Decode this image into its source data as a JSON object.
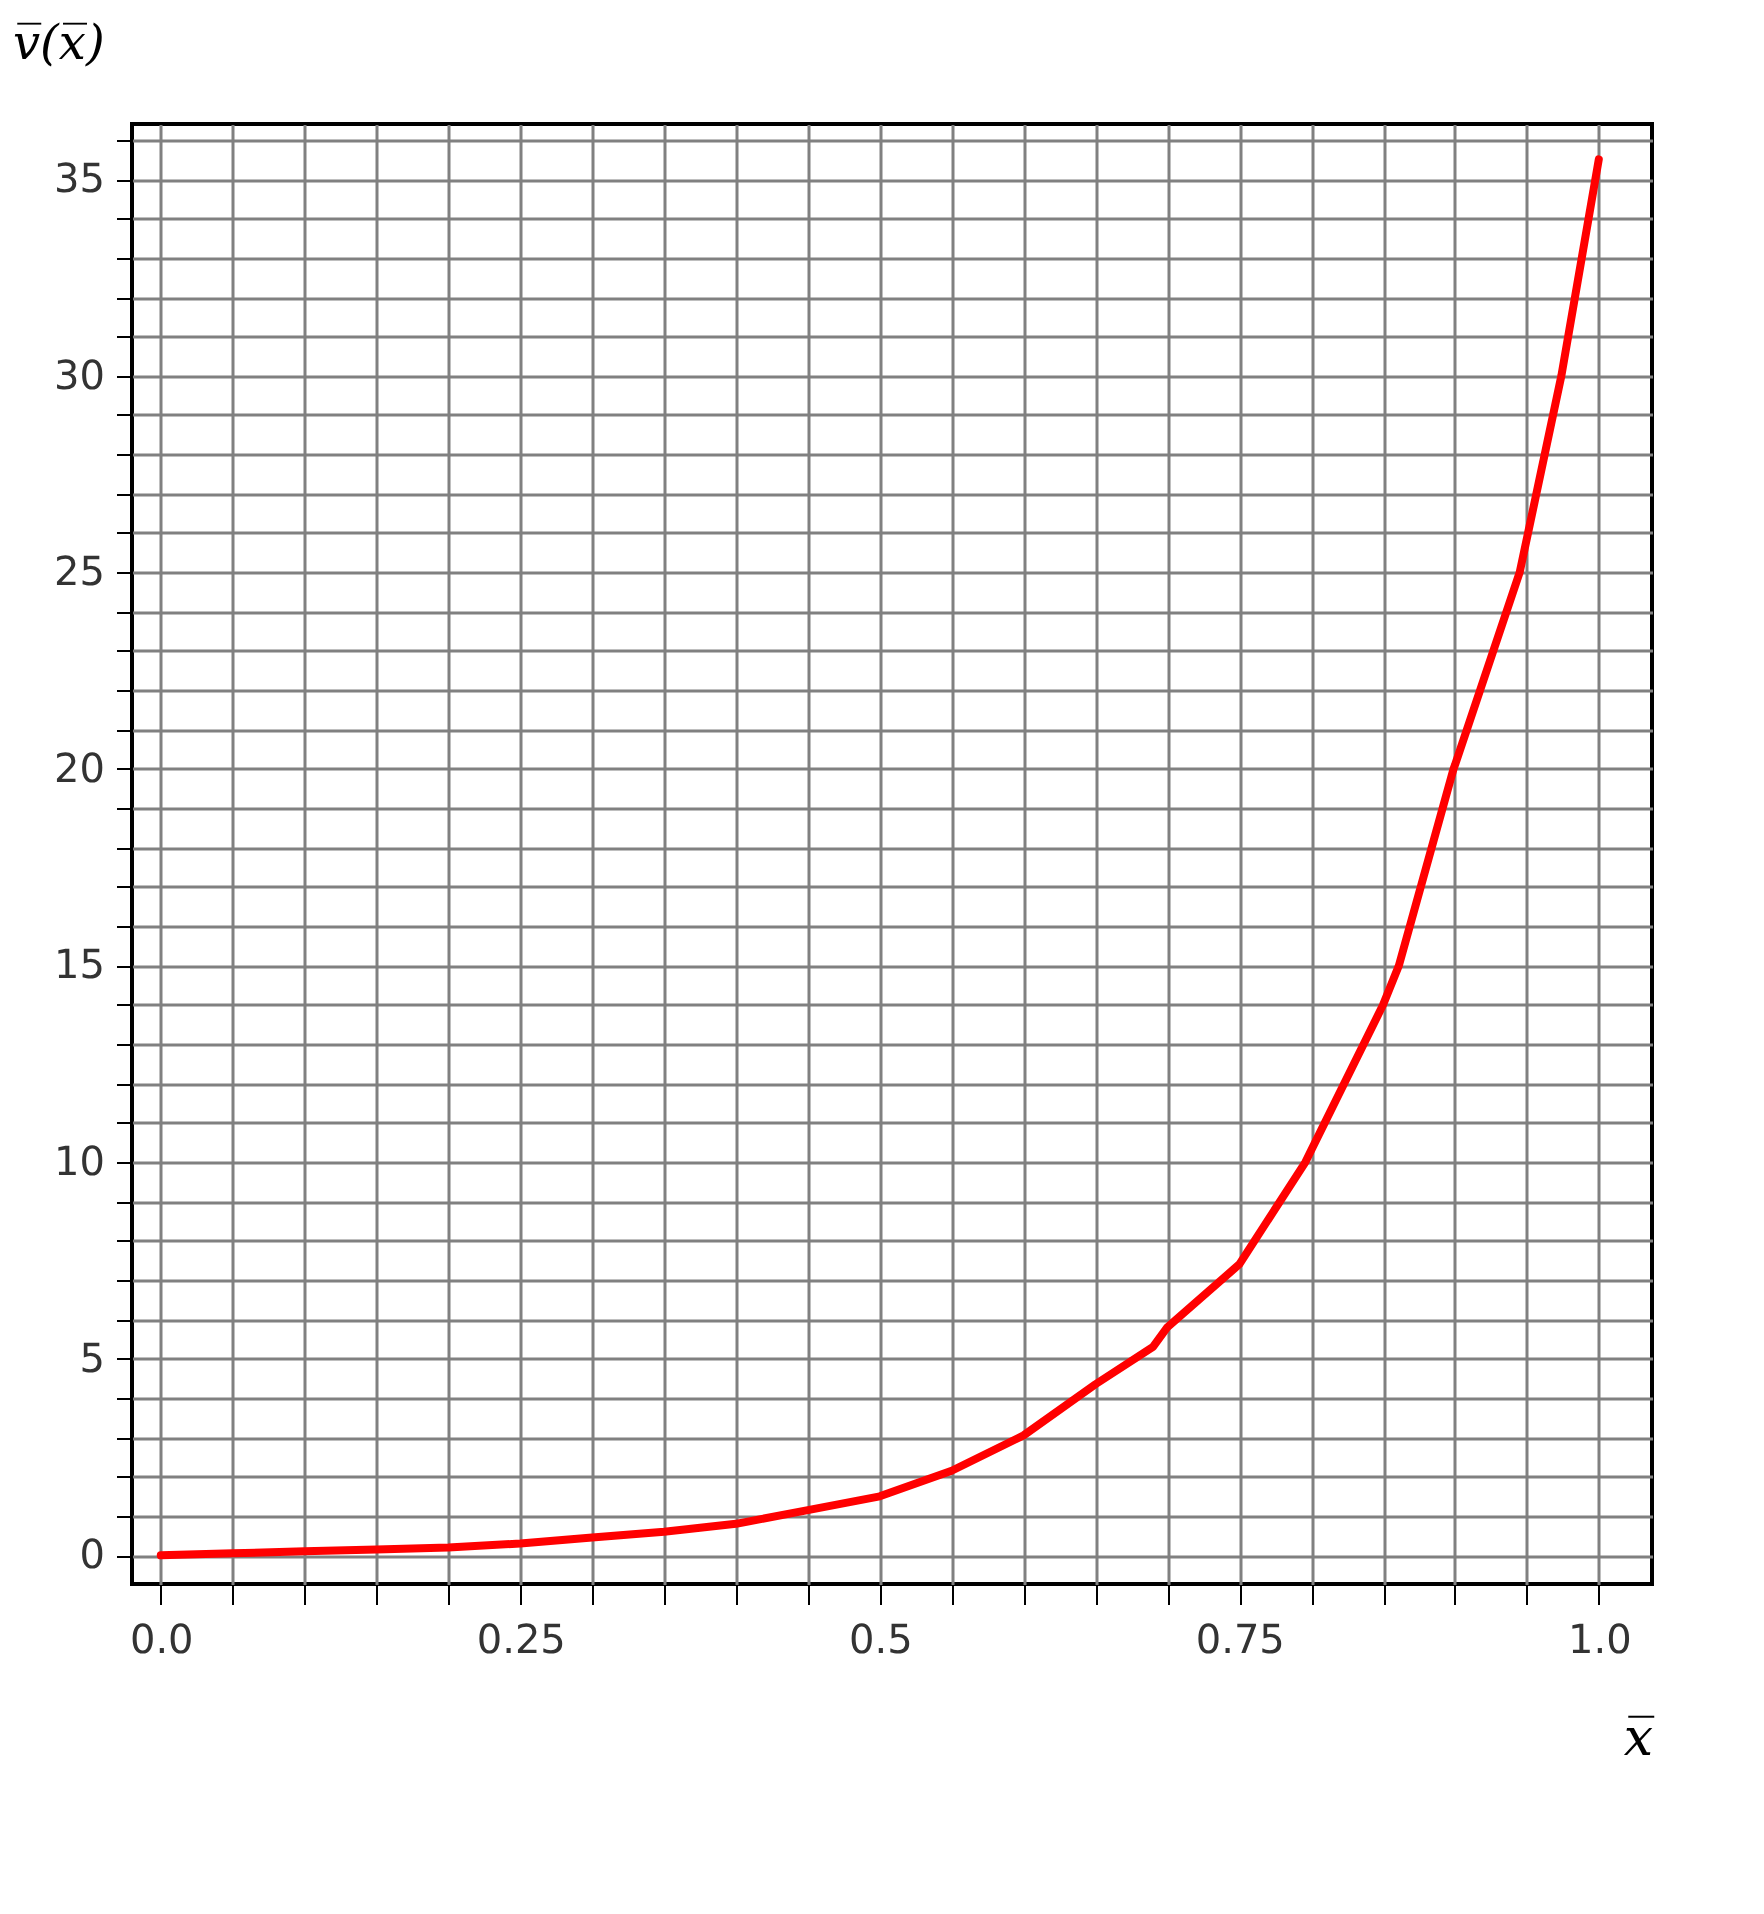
{
  "chart_data": {
    "type": "line",
    "xlabel": "x̅",
    "ylabel": "v̅(x̅)",
    "x": [
      0,
      0.05,
      0.1,
      0.15,
      0.2,
      0.25,
      0.3,
      0.35,
      0.4,
      0.45,
      0.5,
      0.55,
      0.6,
      0.65,
      0.69,
      0.7,
      0.75,
      0.796,
      0.8,
      0.85,
      0.861,
      0.899,
      0.9,
      0.945,
      0.974,
      1.0
    ],
    "series": [
      {
        "color": "#ff0000",
        "values": [
          0,
          0.05,
          0.1,
          0.15,
          0.2,
          0.3,
          0.45,
          0.6,
          0.8,
          1.15,
          1.5,
          2.15,
          3.05,
          4.35,
          5.3,
          5.8,
          7.4,
          10,
          10.3,
          14,
          15,
          20,
          20.1,
          25,
          30,
          35.5
        ]
      }
    ],
    "xlim": [
      -0.02,
      1.037
    ],
    "ylim": [
      -0.73,
      36.4
    ],
    "xticks": [
      {
        "value": 0,
        "label": "0.0"
      },
      {
        "value": 0.05,
        "label": null
      },
      {
        "value": 0.1,
        "label": null
      },
      {
        "value": 0.15,
        "label": null
      },
      {
        "value": 0.2,
        "label": null
      },
      0.25,
      {
        "value": 0.3,
        "label": null
      },
      {
        "value": 0.35,
        "label": null
      },
      {
        "value": 0.4,
        "label": null
      },
      {
        "value": 0.45,
        "label": null
      },
      0.5,
      {
        "value": 0.55,
        "label": null
      },
      {
        "value": 0.6,
        "label": null
      },
      {
        "value": 0.65,
        "label": null
      },
      {
        "value": 0.7,
        "label": null
      },
      0.75,
      {
        "value": 0.8,
        "label": null
      },
      {
        "value": 0.85,
        "label": null
      },
      {
        "value": 0.9,
        "label": null
      },
      {
        "value": 0.95,
        "label": null
      },
      {
        "value": 1,
        "label": "1.0"
      }
    ],
    "yticks": [
      0,
      {
        "value": 1,
        "label": null
      },
      {
        "value": 2,
        "label": null
      },
      {
        "value": 3,
        "label": null
      },
      {
        "value": 4,
        "label": null
      },
      5,
      {
        "value": 6,
        "label": null
      },
      {
        "value": 7,
        "label": null
      },
      {
        "value": 8,
        "label": null
      },
      {
        "value": 9,
        "label": null
      },
      10,
      {
        "value": 11,
        "label": null
      },
      {
        "value": 12,
        "label": null
      },
      {
        "value": 13,
        "label": null
      },
      {
        "value": 14,
        "label": null
      },
      15,
      {
        "value": 16,
        "label": null
      },
      {
        "value": 17,
        "label": null
      },
      {
        "value": 18,
        "label": null
      },
      {
        "value": 19,
        "label": null
      },
      20,
      {
        "value": 21,
        "label": null
      },
      {
        "value": 22,
        "label": null
      },
      {
        "value": 23,
        "label": null
      },
      {
        "value": 24,
        "label": null
      },
      25,
      {
        "value": 26,
        "label": null
      },
      {
        "value": 27,
        "label": null
      },
      {
        "value": 28,
        "label": null
      },
      {
        "value": 29,
        "label": null
      },
      30,
      {
        "value": 31,
        "label": null
      },
      {
        "value": 32,
        "label": null
      },
      {
        "value": 33,
        "label": null
      },
      {
        "value": 34,
        "label": null
      },
      35,
      {
        "value": 36,
        "label": null
      }
    ],
    "grid": true,
    "marker": "none",
    "line_style": "solid"
  }
}
